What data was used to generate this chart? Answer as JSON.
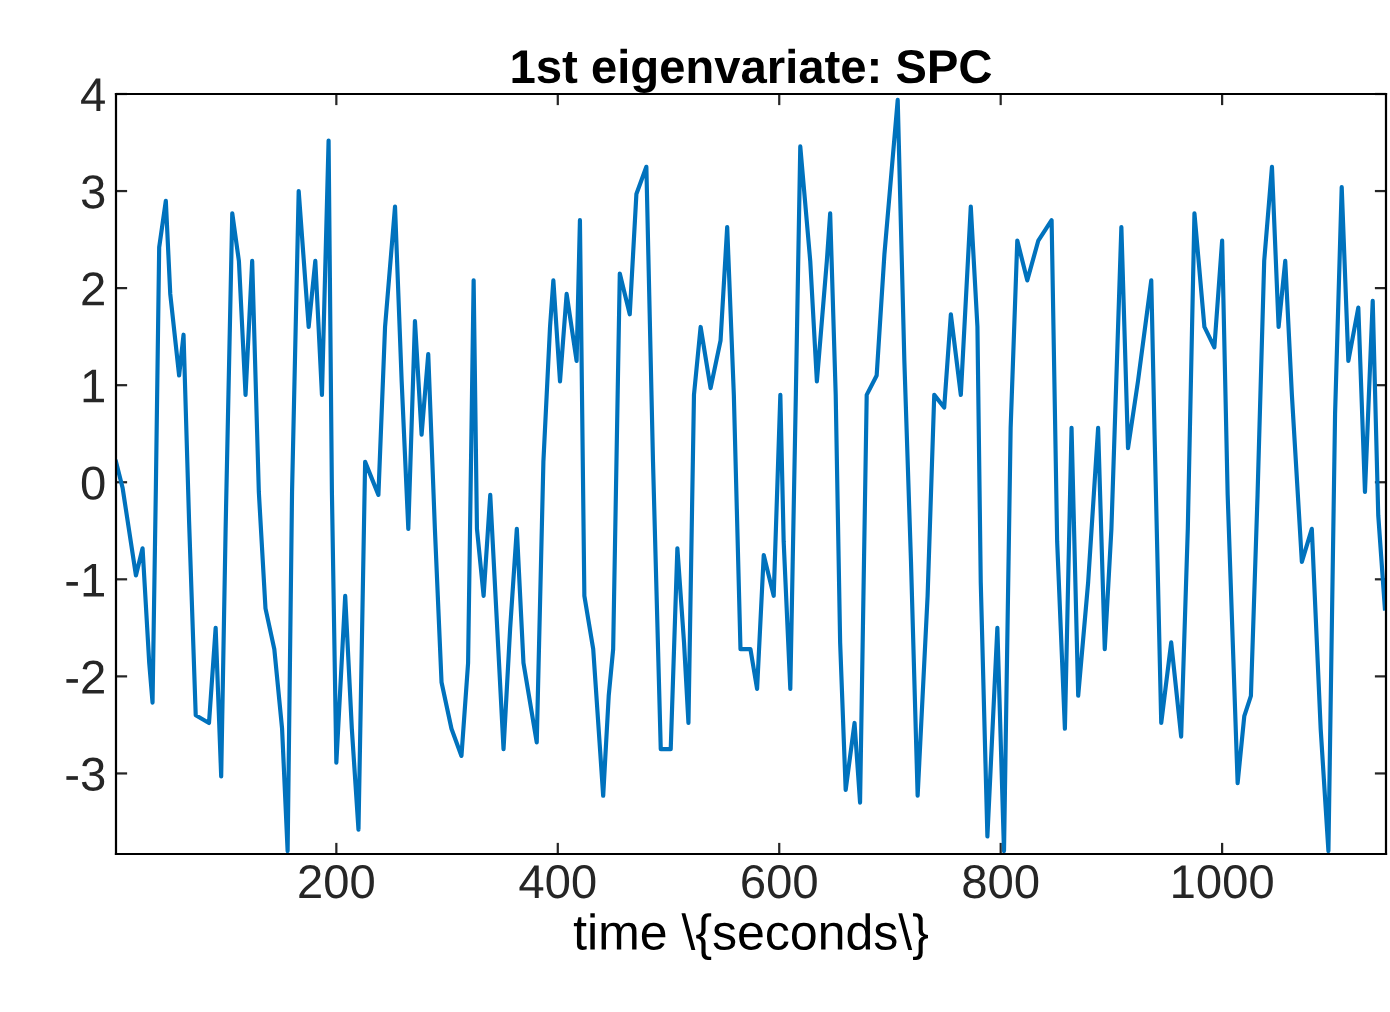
{
  "chart_data": {
    "type": "line",
    "title": "1st eigenvariate: SPC",
    "xlabel": "time \\{seconds\\}",
    "xlim": [
      1,
      1148
    ],
    "ylim": [
      -3.83,
      4
    ],
    "xticks": [
      200,
      400,
      600,
      800,
      1000
    ],
    "yticks": [
      -3,
      -2,
      -1,
      0,
      1,
      2,
      3,
      4
    ],
    "marker": "none",
    "line_style": "solid",
    "series": [
      {
        "color": "#0072bd",
        "x": [
          1,
          7,
          19,
          25,
          31,
          34,
          37,
          40,
          46,
          50,
          58,
          62,
          67,
          73,
          85,
          91,
          96,
          100,
          106,
          112,
          118,
          124,
          130,
          136,
          144,
          151,
          156,
          160,
          166,
          175,
          181,
          187,
          193,
          196,
          200,
          208,
          214,
          220,
          226,
          238,
          244,
          253,
          259,
          265,
          271,
          277,
          283,
          289,
          295,
          304,
          313,
          319,
          324,
          327,
          333,
          339,
          351,
          357,
          363,
          369,
          381,
          387,
          393,
          396,
          402,
          408,
          417,
          420,
          424,
          432,
          441,
          446,
          450,
          456,
          465,
          471,
          480,
          486,
          493,
          502,
          508,
          514,
          518,
          523,
          529,
          538,
          547,
          553,
          559,
          565,
          574,
          580,
          586,
          595,
          601,
          604,
          610,
          615,
          619,
          628,
          634,
          643,
          646,
          651,
          655,
          660,
          668,
          673,
          679,
          688,
          695,
          707,
          713,
          719,
          725,
          734,
          740,
          749,
          755,
          764,
          773,
          779,
          782,
          788,
          797,
          803,
          809,
          815,
          824,
          834,
          846,
          851,
          858,
          864,
          870,
          879,
          888,
          894,
          900,
          909,
          915,
          924,
          936,
          939,
          945,
          954,
          963,
          969,
          975,
          984,
          993,
          1000,
          1005,
          1014,
          1020,
          1026,
          1032,
          1038,
          1045,
          1051,
          1057,
          1063,
          1072,
          1081,
          1089,
          1096,
          1102,
          1108,
          1114,
          1123,
          1129,
          1136,
          1141,
          1147
        ],
        "values": [
          0.21,
          -0.06,
          -0.96,
          -0.68,
          -1.86,
          -2.27,
          -0.06,
          2.42,
          2.9,
          1.94,
          1.1,
          1.52,
          -0.4,
          -2.4,
          -2.48,
          -1.5,
          -3.03,
          -0.48,
          2.77,
          2.28,
          0.9,
          2.28,
          -0.1,
          -1.3,
          -1.72,
          -2.54,
          -3.8,
          -0.1,
          3.0,
          1.6,
          2.28,
          0.9,
          3.52,
          -0.1,
          -2.89,
          -1.17,
          -2.54,
          -3.58,
          0.21,
          -0.13,
          1.6,
          2.84,
          1.04,
          -0.48,
          1.66,
          0.49,
          1.32,
          -0.48,
          -2.06,
          -2.54,
          -2.82,
          -1.86,
          2.08,
          -0.48,
          -1.17,
          -0.13,
          -2.75,
          -1.5,
          -0.48,
          -1.86,
          -2.68,
          0.21,
          1.6,
          2.08,
          1.04,
          1.94,
          1.25,
          2.7,
          -1.17,
          -1.72,
          -3.23,
          -2.2,
          -1.72,
          2.15,
          1.73,
          2.97,
          3.25,
          0.21,
          -2.75,
          -2.75,
          -0.68,
          -1.65,
          -2.48,
          0.9,
          1.6,
          0.97,
          1.46,
          2.63,
          0.9,
          -1.72,
          -1.72,
          -2.13,
          -0.75,
          -1.17,
          0.9,
          -0.61,
          -2.13,
          0.9,
          3.46,
          2.28,
          1.04,
          2.28,
          2.77,
          0.9,
          -1.65,
          -3.17,
          -2.48,
          -3.3,
          0.9,
          1.1,
          2.35,
          3.94,
          1.25,
          -0.82,
          -3.23,
          -1.17,
          0.9,
          0.77,
          1.73,
          0.9,
          2.84,
          1.6,
          -1.03,
          -3.65,
          -1.5,
          -3.8,
          0.56,
          2.49,
          2.08,
          2.49,
          2.7,
          -0.61,
          -2.54,
          0.56,
          -2.2,
          -1.03,
          0.56,
          -1.72,
          -0.48,
          2.63,
          0.35,
          1.04,
          2.08,
          0.49,
          -2.48,
          -1.65,
          -2.62,
          -0.48,
          2.77,
          1.6,
          1.39,
          2.49,
          -0.13,
          -3.1,
          -2.41,
          -2.2,
          -0.13,
          2.28,
          3.25,
          1.6,
          2.28,
          0.9,
          -0.82,
          -0.48,
          -2.54,
          -3.8,
          0.7,
          3.04,
          1.25,
          1.8,
          -0.1,
          1.87,
          -0.34,
          -1.3
        ]
      }
    ]
  }
}
